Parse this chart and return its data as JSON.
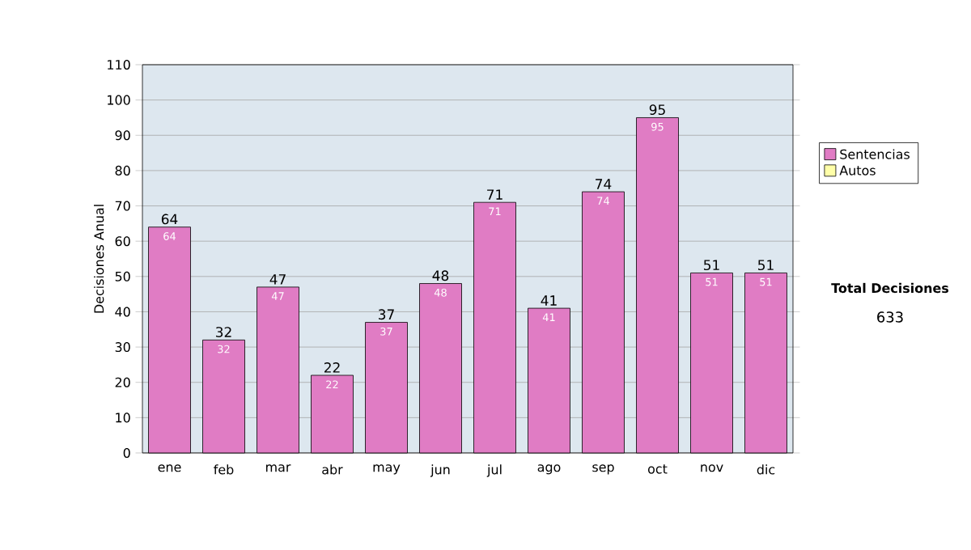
{
  "chart_data": {
    "type": "bar",
    "ylabel": "Decisiones Anual",
    "categories": [
      "ene",
      "feb",
      "mar",
      "abr",
      "may",
      "jun",
      "jul",
      "ago",
      "sep",
      "oct",
      "nov",
      "dic"
    ],
    "series": [
      {
        "name": "Sentencias",
        "color": "#e07cc4",
        "values": [
          64,
          32,
          47,
          22,
          37,
          48,
          71,
          41,
          74,
          95,
          51,
          51
        ],
        "value_labels": [
          "64",
          "32",
          "47",
          "22",
          "37",
          "48",
          "71",
          "41",
          "74",
          "95",
          "51",
          "51"
        ]
      },
      {
        "name": "Autos",
        "color": "#ffffa8",
        "values": [
          null,
          null,
          null,
          null,
          null,
          null,
          null,
          null,
          null,
          null,
          null,
          null
        ]
      }
    ],
    "ylim": [
      0,
      110
    ],
    "yticks": [
      0,
      10,
      20,
      30,
      40,
      50,
      60,
      70,
      80,
      90,
      100,
      110
    ],
    "grid": "y",
    "legend": "right",
    "annotations": [
      "Total Decisiones",
      "633"
    ]
  }
}
